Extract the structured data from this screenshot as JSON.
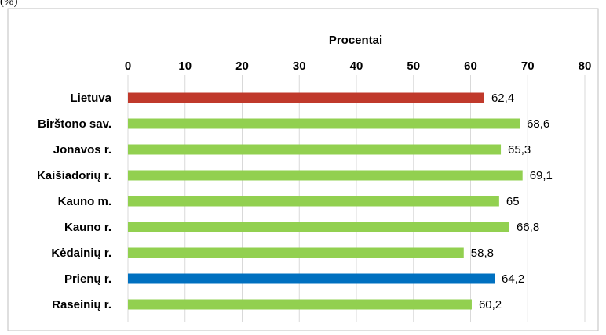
{
  "top_fragment": "(%)",
  "chart_data": {
    "type": "bar",
    "orientation": "horizontal",
    "title": "",
    "xlabel": "Procentai",
    "ylabel": "",
    "xlim": [
      0,
      80
    ],
    "ticks": [
      "0",
      "10",
      "20",
      "30",
      "40",
      "50",
      "60",
      "70",
      "80"
    ],
    "grid": true,
    "legend": "none",
    "categories": [
      "Lietuva",
      "Birštono sav.",
      "Jonavos r.",
      "Kaišiadorių r.",
      "Kauno m.",
      "Kauno r.",
      "Kėdainių r.",
      "Prienų r.",
      "Raseinių r."
    ],
    "values": [
      62.4,
      68.6,
      65.3,
      69.1,
      65,
      66.8,
      58.8,
      64.2,
      60.2
    ],
    "value_labels": [
      "62,4",
      "68,6",
      "65,3",
      "69,1",
      "65",
      "66,8",
      "58,8",
      "64,2",
      "60,2"
    ],
    "bar_colors": [
      "#C0392B",
      "#92D050",
      "#92D050",
      "#92D050",
      "#92D050",
      "#92D050",
      "#92D050",
      "#0070C0",
      "#92D050"
    ],
    "gridline_color": "#D9D9D9",
    "frame_color": "#BFBFBF"
  }
}
